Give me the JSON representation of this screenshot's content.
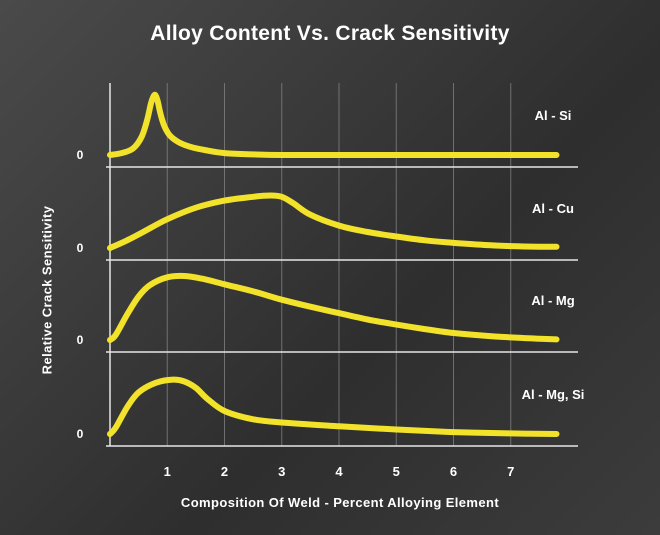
{
  "chart_data": {
    "type": "line",
    "title": "Alloy Content Vs. Crack Sensitivity",
    "xlabel": "Composition Of Weld - Percent Alloying Element",
    "ylabel": "Relative Crack Sensitivity",
    "xlim": [
      0,
      8
    ],
    "ylim": [
      0,
      1
    ],
    "x_ticks": [
      "1",
      "2",
      "3",
      "4",
      "5",
      "6",
      "7"
    ],
    "zero_label": "0",
    "grid": true,
    "series": [
      {
        "name": "Al - Si",
        "x": [
          0,
          0.2,
          0.4,
          0.55,
          0.65,
          0.72,
          0.78,
          0.83,
          0.88,
          0.95,
          1.05,
          1.2,
          1.4,
          1.7,
          2.0,
          2.5,
          3.0,
          4.0,
          5.0,
          6.0,
          7.0,
          7.8
        ],
        "y": [
          0.0,
          0.03,
          0.1,
          0.28,
          0.55,
          0.82,
          0.94,
          0.85,
          0.65,
          0.45,
          0.3,
          0.2,
          0.13,
          0.07,
          0.03,
          0.01,
          0.0,
          0.0,
          0.0,
          0.0,
          0.0,
          0.0
        ]
      },
      {
        "name": "Al - Cu",
        "x": [
          0,
          0.3,
          0.6,
          1.0,
          1.5,
          2.0,
          2.5,
          2.8,
          3.0,
          3.2,
          3.5,
          4.0,
          4.5,
          5.0,
          5.5,
          6.0,
          6.5,
          7.0,
          7.5,
          7.8
        ],
        "y": [
          0.0,
          0.12,
          0.26,
          0.45,
          0.63,
          0.74,
          0.8,
          0.82,
          0.8,
          0.7,
          0.52,
          0.35,
          0.25,
          0.18,
          0.12,
          0.08,
          0.05,
          0.03,
          0.02,
          0.02
        ]
      },
      {
        "name": "Al - Mg",
        "x": [
          0,
          0.1,
          0.3,
          0.5,
          0.7,
          1.0,
          1.3,
          1.6,
          2.0,
          2.5,
          3.0,
          3.5,
          4.0,
          4.5,
          5.0,
          5.5,
          6.0,
          6.5,
          7.0,
          7.5,
          7.8
        ],
        "y": [
          0.0,
          0.08,
          0.4,
          0.68,
          0.86,
          0.98,
          1.0,
          0.96,
          0.87,
          0.76,
          0.63,
          0.52,
          0.42,
          0.32,
          0.24,
          0.17,
          0.11,
          0.07,
          0.04,
          0.02,
          0.01
        ]
      },
      {
        "name": "Al - Mg, Si",
        "x": [
          0,
          0.1,
          0.3,
          0.5,
          0.8,
          1.1,
          1.3,
          1.5,
          1.7,
          2.0,
          2.5,
          3.0,
          4.0,
          5.0,
          6.0,
          7.0,
          7.8
        ],
        "y": [
          0.0,
          0.1,
          0.42,
          0.65,
          0.8,
          0.85,
          0.82,
          0.72,
          0.55,
          0.36,
          0.23,
          0.18,
          0.12,
          0.07,
          0.03,
          0.01,
          0.0
        ]
      }
    ]
  }
}
